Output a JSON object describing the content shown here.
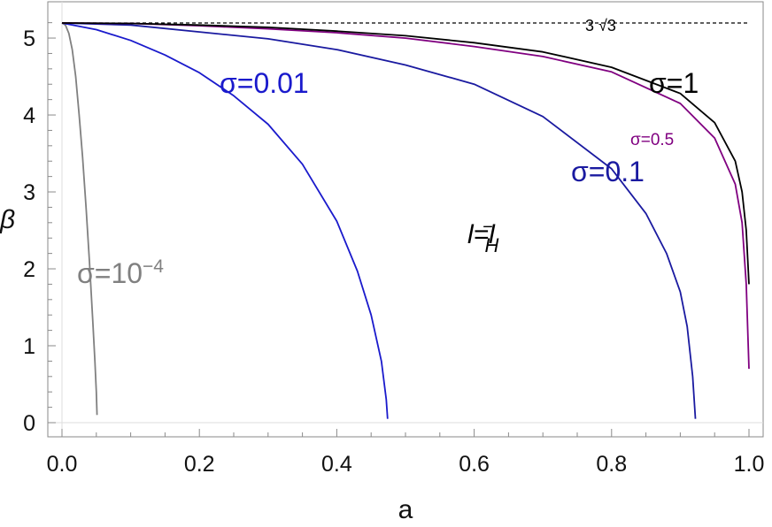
{
  "chart_data": {
    "type": "line",
    "title": "",
    "xlabel": "a",
    "ylabel": "β",
    "xlim": [
      0,
      1
    ],
    "ylim": [
      0,
      5.196
    ],
    "grid": false,
    "x_ticks": [
      "0.0",
      "0.2",
      "0.4",
      "0.6",
      "0.8",
      "1.0"
    ],
    "y_ticks": [
      "0",
      "1",
      "2",
      "3",
      "4",
      "5"
    ],
    "reference_line": {
      "label": "3 √3",
      "value": 5.196,
      "style": "dashed",
      "color": "#000000"
    },
    "center_annotation": "l=l",
    "center_annotation_sub": "H",
    "center_annotation_sup": "−",
    "series": [
      {
        "name": "σ=10",
        "name_sup": "−4",
        "color": "#808080",
        "label_size": 32,
        "x": [
          0,
          0.005,
          0.01,
          0.015,
          0.02,
          0.025,
          0.03,
          0.035,
          0.04,
          0.045,
          0.048,
          0.05,
          0.051
        ],
        "y": [
          5.196,
          5.17,
          5.06,
          4.85,
          4.5,
          4.0,
          3.45,
          2.8,
          2.1,
          1.3,
          0.8,
          0.4,
          0.1
        ]
      },
      {
        "name": "σ=0.01",
        "color": "#1a1acc",
        "label_size": 32,
        "x": [
          0,
          0.05,
          0.1,
          0.15,
          0.2,
          0.25,
          0.3,
          0.35,
          0.4,
          0.43,
          0.45,
          0.465,
          0.472,
          0.474
        ],
        "y": [
          5.196,
          5.11,
          4.97,
          4.78,
          4.55,
          4.25,
          3.88,
          3.36,
          2.62,
          1.97,
          1.4,
          0.8,
          0.3,
          0.05
        ]
      },
      {
        "name": "σ=0.1",
        "color": "#1a1aa0",
        "label_size": 32,
        "x": [
          0,
          0.1,
          0.2,
          0.3,
          0.4,
          0.5,
          0.6,
          0.7,
          0.8,
          0.85,
          0.88,
          0.9,
          0.91,
          0.918,
          0.922
        ],
        "y": [
          5.196,
          5.17,
          5.08,
          4.99,
          4.85,
          4.65,
          4.4,
          3.98,
          3.3,
          2.72,
          2.2,
          1.7,
          1.25,
          0.6,
          0.05
        ]
      },
      {
        "name": "σ=0.5",
        "color": "#800080",
        "label_size": 19,
        "x": [
          0,
          0.1,
          0.2,
          0.3,
          0.4,
          0.5,
          0.6,
          0.7,
          0.8,
          0.9,
          0.95,
          0.98,
          0.99,
          0.996,
          1.0
        ],
        "y": [
          5.196,
          5.19,
          5.16,
          5.12,
          5.07,
          5.0,
          4.89,
          4.76,
          4.56,
          4.15,
          3.7,
          3.1,
          2.6,
          1.8,
          0.7
        ]
      },
      {
        "name": "σ=1",
        "color": "#000000",
        "label_size": 32,
        "x": [
          0,
          0.1,
          0.2,
          0.3,
          0.4,
          0.5,
          0.6,
          0.7,
          0.8,
          0.9,
          0.95,
          0.98,
          0.99,
          0.996,
          1.0
        ],
        "y": [
          5.196,
          5.19,
          5.17,
          5.14,
          5.09,
          5.03,
          4.94,
          4.82,
          4.62,
          4.28,
          3.9,
          3.4,
          3.0,
          2.5,
          1.8
        ]
      }
    ]
  }
}
